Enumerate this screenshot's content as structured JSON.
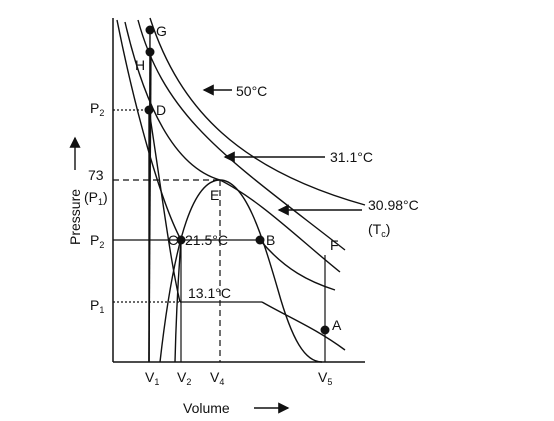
{
  "diagram": {
    "points": [
      "G",
      "H",
      "D",
      "E",
      "C",
      "B",
      "F",
      "A"
    ],
    "isotherms": [
      "50°C",
      "31.1°C",
      "30.98°C",
      "21.5°C",
      "13.1°C"
    ],
    "critical_temperature": {
      "base": "(T",
      "sub": "c",
      "close": ")"
    },
    "y_labels": [
      {
        "base": "P",
        "sub": "2"
      },
      "73",
      {
        "base": "(P",
        "sub": "1",
        "close": ")"
      },
      {
        "base": "P",
        "sub": "2"
      },
      {
        "base": "P",
        "sub": "1"
      }
    ],
    "x_labels": [
      {
        "base": "V",
        "sub": "1"
      },
      {
        "base": "V",
        "sub": "2"
      },
      {
        "base": "V",
        "sub": "4"
      },
      {
        "base": "V",
        "sub": "5"
      }
    ],
    "x_axis_title": "Volume",
    "y_axis_title": "Pressure"
  }
}
